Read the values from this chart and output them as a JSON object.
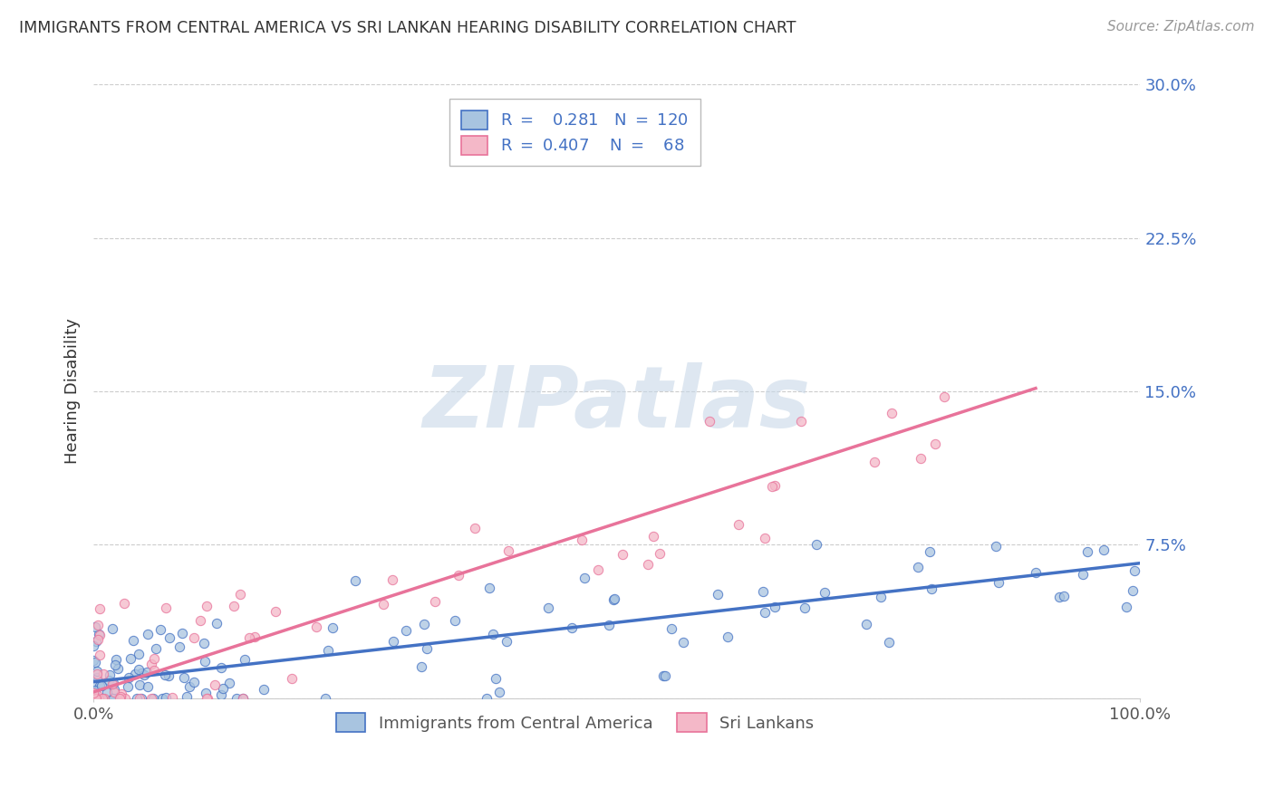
{
  "title": "IMMIGRANTS FROM CENTRAL AMERICA VS SRI LANKAN HEARING DISABILITY CORRELATION CHART",
  "source": "Source: ZipAtlas.com",
  "ylabel": "Hearing Disability",
  "watermark": "ZIPatlas",
  "series": [
    {
      "name": "Immigrants from Central America",
      "fill_color": "#a8c4e0",
      "edge_color": "#4472c4",
      "line_color": "#4472c4",
      "R": 0.281,
      "N": 120
    },
    {
      "name": "Sri Lankans",
      "fill_color": "#f4b8c8",
      "edge_color": "#e8739a",
      "line_color": "#e8739a",
      "R": 0.407,
      "N": 68
    }
  ],
  "xlim": [
    0.0,
    1.0
  ],
  "ylim": [
    0.0,
    0.3
  ],
  "yticks": [
    0.0,
    0.075,
    0.15,
    0.225,
    0.3
  ],
  "ytick_labels": [
    "",
    "7.5%",
    "15.0%",
    "22.5%",
    "30.0%"
  ],
  "xtick_labels": [
    "0.0%",
    "100.0%"
  ],
  "background_color": "#ffffff",
  "grid_color": "#cccccc",
  "title_color": "#333333",
  "axis_label_color": "#4472c4",
  "legend_text_color": "#4472c4",
  "ca_intercept": 0.008,
  "ca_slope": 0.058,
  "sl_intercept": 0.003,
  "sl_slope": 0.165
}
